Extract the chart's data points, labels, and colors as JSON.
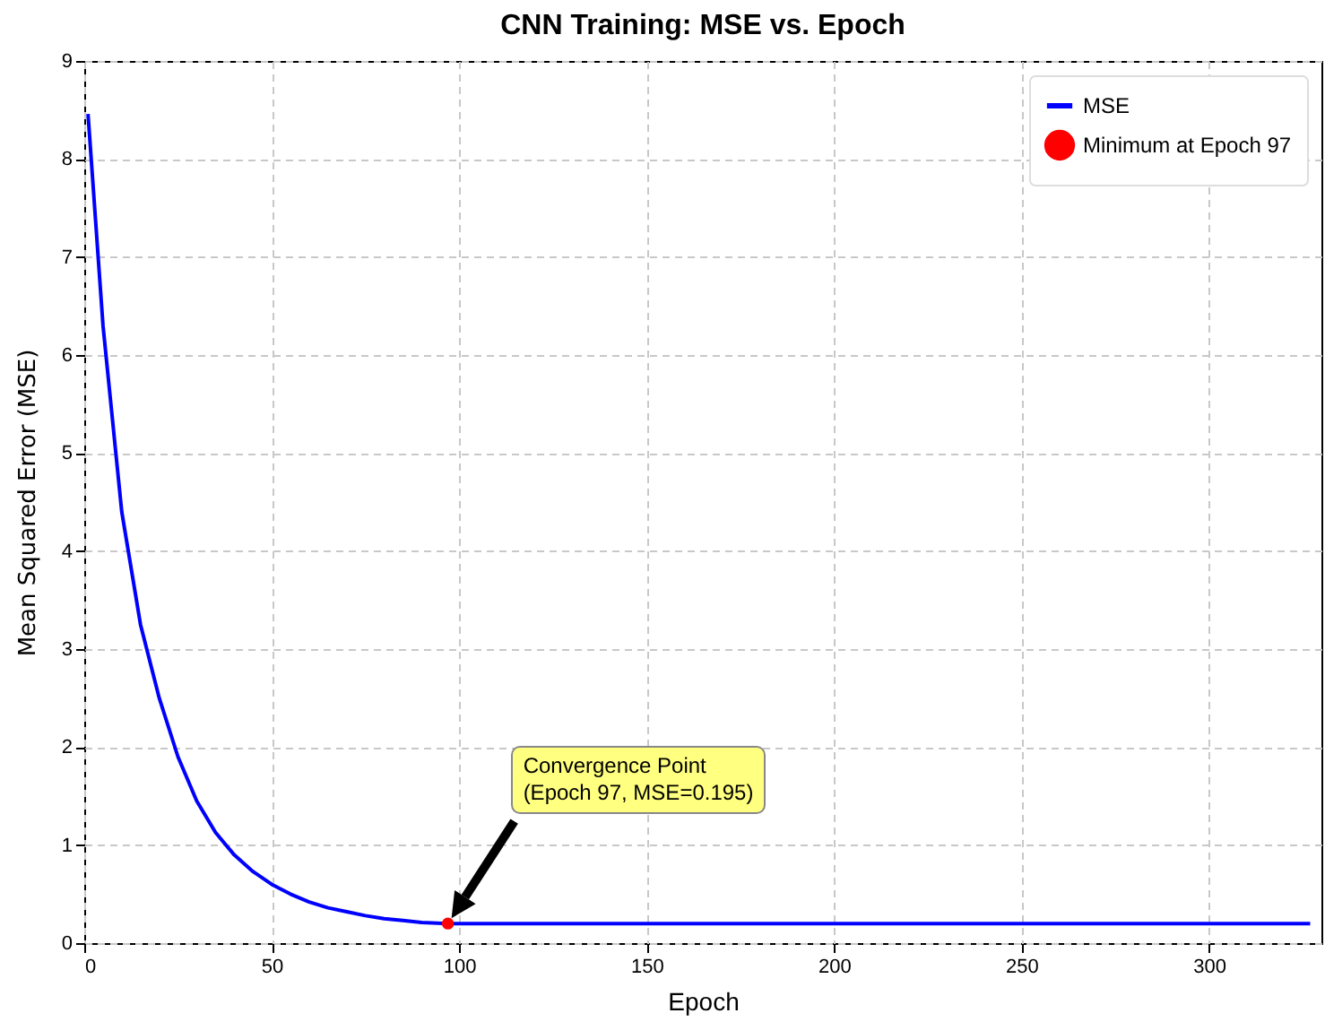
{
  "chart_data": {
    "type": "line",
    "title": "CNN Training: MSE vs. Epoch",
    "xlabel": "Epoch",
    "ylabel": "Mean Squared Error (MSE)",
    "xlim": [
      0,
      330
    ],
    "xticks": [
      0,
      50,
      100,
      150,
      200,
      250,
      300
    ],
    "ylim": [
      0,
      9
    ],
    "yticks": [
      0,
      1,
      2,
      3,
      4,
      5,
      6,
      7,
      8,
      9
    ],
    "grid": true,
    "legend": "top right",
    "series": [
      {
        "name": "MSE",
        "color": "#0000ff",
        "x": [
          1,
          5,
          10,
          15,
          20,
          25,
          30,
          35,
          40,
          45,
          50,
          55,
          60,
          65,
          70,
          75,
          80,
          85,
          90,
          97,
          150,
          200,
          250,
          300,
          327
        ],
        "values": [
          8.46,
          6.3,
          4.4,
          3.25,
          2.5,
          1.9,
          1.45,
          1.13,
          0.9,
          0.73,
          0.6,
          0.5,
          0.42,
          0.36,
          0.32,
          0.28,
          0.25,
          0.23,
          0.21,
          0.2,
          0.2,
          0.2,
          0.2,
          0.2,
          0.2
        ]
      },
      {
        "name": "Minimum at Epoch 97",
        "type": "scatter",
        "color": "#ff0000",
        "marker": "circle",
        "x": [
          97
        ],
        "values": [
          0.2
        ]
      }
    ],
    "annotations": [
      "Convergence Point\n(Epoch 97, MSE=0.195)"
    ]
  }
}
